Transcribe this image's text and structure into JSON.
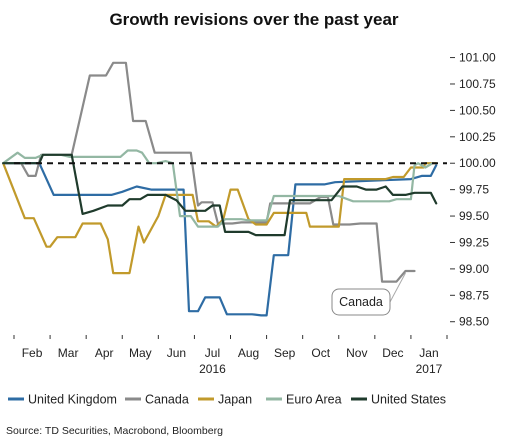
{
  "chart_data": {
    "type": "line",
    "title": "Growth revisions over the past year",
    "source": "Source: TD Securities, Macrobond, Bloomberg",
    "x_tick_labels": [
      "Feb",
      "Mar",
      "Apr",
      "May",
      "Jun",
      "Jul",
      "Aug",
      "Sep",
      "Oct",
      "Nov",
      "Dec",
      "Jan"
    ],
    "x_year_labels": [
      {
        "label": "2016",
        "under_tick": 5
      },
      {
        "label": "2017",
        "under_tick": 11
      }
    ],
    "xlim": [
      0,
      12
    ],
    "ylim": [
      98.45,
      101.1
    ],
    "y_ticks": [
      {
        "value": 101.0,
        "label": "101.00"
      },
      {
        "value": 100.75,
        "label": "100.75"
      },
      {
        "value": 100.5,
        "label": "100.50"
      },
      {
        "value": 100.25,
        "label": "100.25"
      },
      {
        "value": 100.0,
        "label": "100.00"
      },
      {
        "value": 99.75,
        "label": "99.75"
      },
      {
        "value": 99.5,
        "label": "99.50"
      },
      {
        "value": 99.25,
        "label": "99.25"
      },
      {
        "value": 99.0,
        "label": "99.00"
      },
      {
        "value": 98.75,
        "label": "98.75"
      },
      {
        "value": 98.5,
        "label": "98.50"
      }
    ],
    "reference_line": {
      "value": 100.0,
      "style": "dashed"
    },
    "annotation": {
      "text": "Canada",
      "series": "Canada"
    },
    "legend_position": "bottom",
    "series": [
      {
        "name": "United Kingdom",
        "color": "#2e6ca4",
        "points": [
          [
            -0.3,
            100.0
          ],
          [
            0.7,
            100.0
          ],
          [
            1.1,
            99.7
          ],
          [
            2.7,
            99.7
          ],
          [
            3.0,
            99.73
          ],
          [
            3.4,
            99.78
          ],
          [
            3.8,
            99.75
          ],
          [
            4.7,
            99.75
          ],
          [
            4.85,
            98.6
          ],
          [
            5.1,
            98.6
          ],
          [
            5.3,
            98.73
          ],
          [
            5.7,
            98.73
          ],
          [
            5.9,
            98.57
          ],
          [
            6.6,
            98.57
          ],
          [
            6.85,
            98.56
          ],
          [
            7.0,
            98.56
          ],
          [
            7.2,
            99.13
          ],
          [
            7.6,
            99.13
          ],
          [
            7.8,
            99.8
          ],
          [
            8.6,
            99.8
          ],
          [
            8.9,
            99.82
          ],
          [
            11.0,
            99.85
          ],
          [
            11.3,
            99.88
          ],
          [
            11.55,
            99.88
          ],
          [
            11.7,
            99.98
          ]
        ]
      },
      {
        "name": "Canada",
        "color": "#8a8a8a",
        "points": [
          [
            -0.3,
            100.0
          ],
          [
            0.2,
            100.0
          ],
          [
            0.4,
            99.88
          ],
          [
            0.6,
            99.88
          ],
          [
            0.75,
            100.08
          ],
          [
            1.3,
            100.08
          ],
          [
            1.6,
            100.08
          ],
          [
            2.1,
            100.83
          ],
          [
            2.55,
            100.83
          ],
          [
            2.75,
            100.95
          ],
          [
            3.1,
            100.95
          ],
          [
            3.3,
            100.4
          ],
          [
            3.65,
            100.4
          ],
          [
            3.9,
            100.1
          ],
          [
            4.9,
            100.1
          ],
          [
            5.1,
            99.6
          ],
          [
            5.2,
            99.63
          ],
          [
            5.5,
            99.63
          ],
          [
            5.65,
            99.43
          ],
          [
            6.05,
            99.43
          ],
          [
            6.3,
            99.44
          ],
          [
            7.0,
            99.44
          ],
          [
            7.1,
            99.62
          ],
          [
            8.2,
            99.62
          ],
          [
            8.5,
            99.68
          ],
          [
            8.7,
            99.68
          ],
          [
            8.85,
            99.42
          ],
          [
            9.3,
            99.42
          ],
          [
            9.6,
            99.43
          ],
          [
            10.05,
            99.43
          ],
          [
            10.2,
            98.88
          ],
          [
            10.6,
            98.88
          ],
          [
            10.85,
            98.98
          ],
          [
            11.1,
            98.98
          ]
        ]
      },
      {
        "name": "Japan",
        "color": "#c19a2b",
        "points": [
          [
            -0.3,
            100.0
          ],
          [
            0.3,
            99.48
          ],
          [
            0.55,
            99.48
          ],
          [
            0.9,
            99.21
          ],
          [
            1.0,
            99.21
          ],
          [
            1.2,
            99.3
          ],
          [
            1.7,
            99.3
          ],
          [
            1.9,
            99.43
          ],
          [
            2.4,
            99.43
          ],
          [
            2.6,
            99.28
          ],
          [
            2.75,
            98.96
          ],
          [
            3.2,
            98.96
          ],
          [
            3.45,
            99.4
          ],
          [
            3.6,
            99.25
          ],
          [
            4.0,
            99.5
          ],
          [
            4.2,
            99.7
          ],
          [
            4.5,
            99.7
          ],
          [
            4.95,
            99.7
          ],
          [
            5.1,
            99.45
          ],
          [
            5.4,
            99.45
          ],
          [
            5.6,
            99.4
          ],
          [
            5.8,
            99.47
          ],
          [
            6.0,
            99.75
          ],
          [
            6.2,
            99.75
          ],
          [
            6.5,
            99.47
          ],
          [
            6.7,
            99.42
          ],
          [
            6.85,
            99.42
          ],
          [
            7.0,
            99.42
          ],
          [
            7.2,
            99.53
          ],
          [
            8.1,
            99.53
          ],
          [
            8.2,
            99.4
          ],
          [
            9.0,
            99.4
          ],
          [
            9.15,
            99.85
          ],
          [
            10.3,
            99.85
          ],
          [
            10.5,
            99.87
          ],
          [
            10.8,
            99.87
          ],
          [
            11.0,
            99.96
          ],
          [
            11.35,
            99.96
          ],
          [
            11.4,
            100.0
          ],
          [
            11.7,
            100.0
          ]
        ]
      },
      {
        "name": "Euro Area",
        "color": "#93b7a3",
        "points": [
          [
            -0.3,
            100.0
          ],
          [
            0.1,
            100.1
          ],
          [
            0.3,
            100.05
          ],
          [
            0.6,
            100.05
          ],
          [
            0.8,
            100.08
          ],
          [
            1.3,
            100.08
          ],
          [
            1.55,
            100.06
          ],
          [
            2.95,
            100.06
          ],
          [
            3.15,
            100.12
          ],
          [
            3.4,
            100.12
          ],
          [
            3.55,
            100.1
          ],
          [
            3.75,
            100.0
          ],
          [
            3.95,
            100.0
          ],
          [
            4.2,
            100.02
          ],
          [
            4.4,
            100.0
          ],
          [
            4.6,
            99.5
          ],
          [
            4.9,
            99.5
          ],
          [
            5.1,
            99.4
          ],
          [
            5.65,
            99.4
          ],
          [
            5.85,
            99.47
          ],
          [
            6.3,
            99.47
          ],
          [
            6.5,
            99.46
          ],
          [
            7.0,
            99.46
          ],
          [
            7.2,
            99.69
          ],
          [
            9.0,
            99.69
          ],
          [
            9.4,
            99.64
          ],
          [
            10.4,
            99.64
          ],
          [
            10.6,
            99.66
          ],
          [
            11.0,
            99.66
          ],
          [
            11.1,
            99.98
          ],
          [
            11.2,
            100.0
          ],
          [
            11.4,
            99.96
          ],
          [
            11.6,
            100.0
          ]
        ]
      },
      {
        "name": "United States",
        "color": "#1f3b2c",
        "points": [
          [
            -0.3,
            100.0
          ],
          [
            0.7,
            100.0
          ],
          [
            0.8,
            100.08
          ],
          [
            1.6,
            100.08
          ],
          [
            1.9,
            99.52
          ],
          [
            2.2,
            99.55
          ],
          [
            2.6,
            99.6
          ],
          [
            3.0,
            99.6
          ],
          [
            3.2,
            99.66
          ],
          [
            3.5,
            99.66
          ],
          [
            3.7,
            99.7
          ],
          [
            4.2,
            99.7
          ],
          [
            4.5,
            99.65
          ],
          [
            4.75,
            99.55
          ],
          [
            5.3,
            99.55
          ],
          [
            5.5,
            99.6
          ],
          [
            5.7,
            99.6
          ],
          [
            5.85,
            99.35
          ],
          [
            6.5,
            99.35
          ],
          [
            6.7,
            99.32
          ],
          [
            7.5,
            99.32
          ],
          [
            7.65,
            99.65
          ],
          [
            8.8,
            99.65
          ],
          [
            9.1,
            99.78
          ],
          [
            9.5,
            99.78
          ],
          [
            9.75,
            99.75
          ],
          [
            10.05,
            99.75
          ],
          [
            10.3,
            99.78
          ],
          [
            10.5,
            99.7
          ],
          [
            10.85,
            99.7
          ],
          [
            11.1,
            99.72
          ],
          [
            11.55,
            99.72
          ],
          [
            11.7,
            99.62
          ]
        ]
      }
    ]
  }
}
